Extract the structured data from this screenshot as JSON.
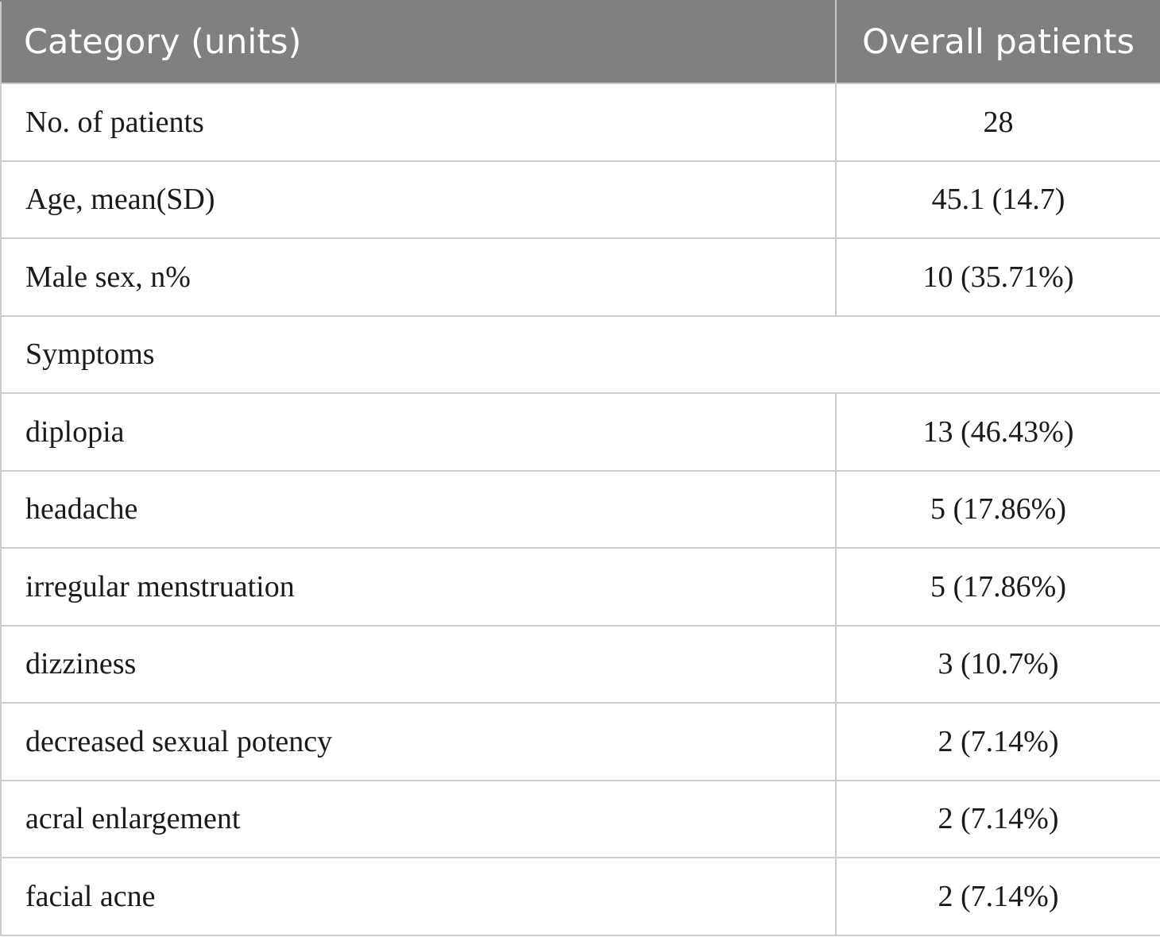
{
  "table": {
    "headers": [
      "Category (units)",
      "Overall patients"
    ],
    "rows": [
      {
        "label": "No. of patients",
        "value": "28"
      },
      {
        "label": "Age, mean(SD)",
        "value": "45.1 (14.7)"
      },
      {
        "label": "Male sex, n%",
        "value": "10 (35.71%)"
      },
      {
        "label": "Symptoms"
      },
      {
        "label": "diplopia",
        "value": "13 (46.43%)"
      },
      {
        "label": "headache",
        "value": "5 (17.86%)"
      },
      {
        "label": "irregular menstruation",
        "value": "5 (17.86%)"
      },
      {
        "label": "dizziness",
        "value": "3 (10.7%)"
      },
      {
        "label": "decreased sexual potency",
        "value": "2 (7.14%)"
      },
      {
        "label": "acral enlargement",
        "value": "2 (7.14%)"
      },
      {
        "label": "facial acne",
        "value": "2 (7.14%)"
      }
    ],
    "header_background": "#808080",
    "header_text_color": "#ffffff",
    "border_color": "#cccccc"
  }
}
